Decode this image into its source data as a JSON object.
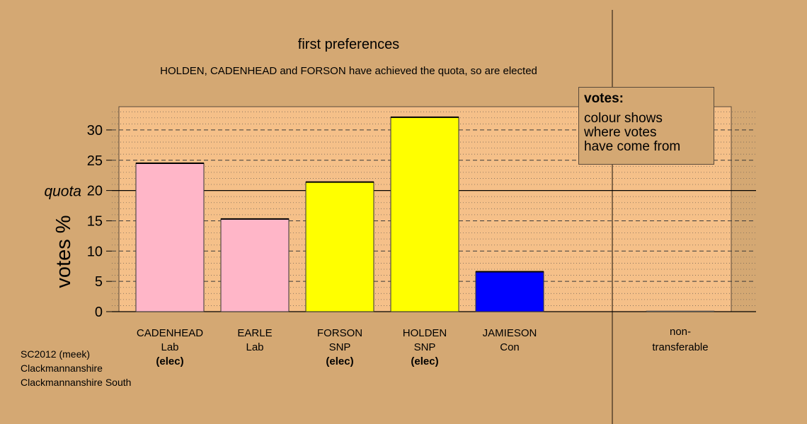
{
  "title": "first preferences",
  "subtitle": "HOLDEN, CADENHEAD and FORSON have achieved the quota, so are elected",
  "legend": {
    "title": "votes:",
    "lines": [
      "colour shows",
      "where votes",
      "have come from"
    ]
  },
  "footer": [
    "SC2012 (meek)",
    "Clackmannanshire",
    "Clackmannanshire South"
  ],
  "colors": {
    "background": "#d4a873",
    "plot_background": "#f5c089",
    "Lab": "#ffb6c8",
    "SNP": "#ffff00",
    "Con": "#0000ff"
  },
  "chart_data": {
    "type": "bar",
    "ylabel": "votes %",
    "ylim": [
      0,
      33
    ],
    "yticks": [
      0,
      5,
      10,
      15,
      20,
      25,
      30
    ],
    "quota": 20,
    "quota_label": "quota",
    "elected_label": "(elec)",
    "grid": true,
    "categories": [
      {
        "name": "CADENHEAD",
        "party": "Lab",
        "elected": true,
        "value": 24.5
      },
      {
        "name": "EARLE",
        "party": "Lab",
        "elected": false,
        "value": 15.3
      },
      {
        "name": "FORSON",
        "party": "SNP",
        "elected": true,
        "value": 21.4
      },
      {
        "name": "HOLDEN",
        "party": "SNP",
        "elected": true,
        "value": 32.1
      },
      {
        "name": "JAMIESON",
        "party": "Con",
        "elected": false,
        "value": 6.6
      }
    ],
    "nontransferable": {
      "label_lines": [
        "non-",
        "transferable"
      ],
      "value": 0
    }
  }
}
